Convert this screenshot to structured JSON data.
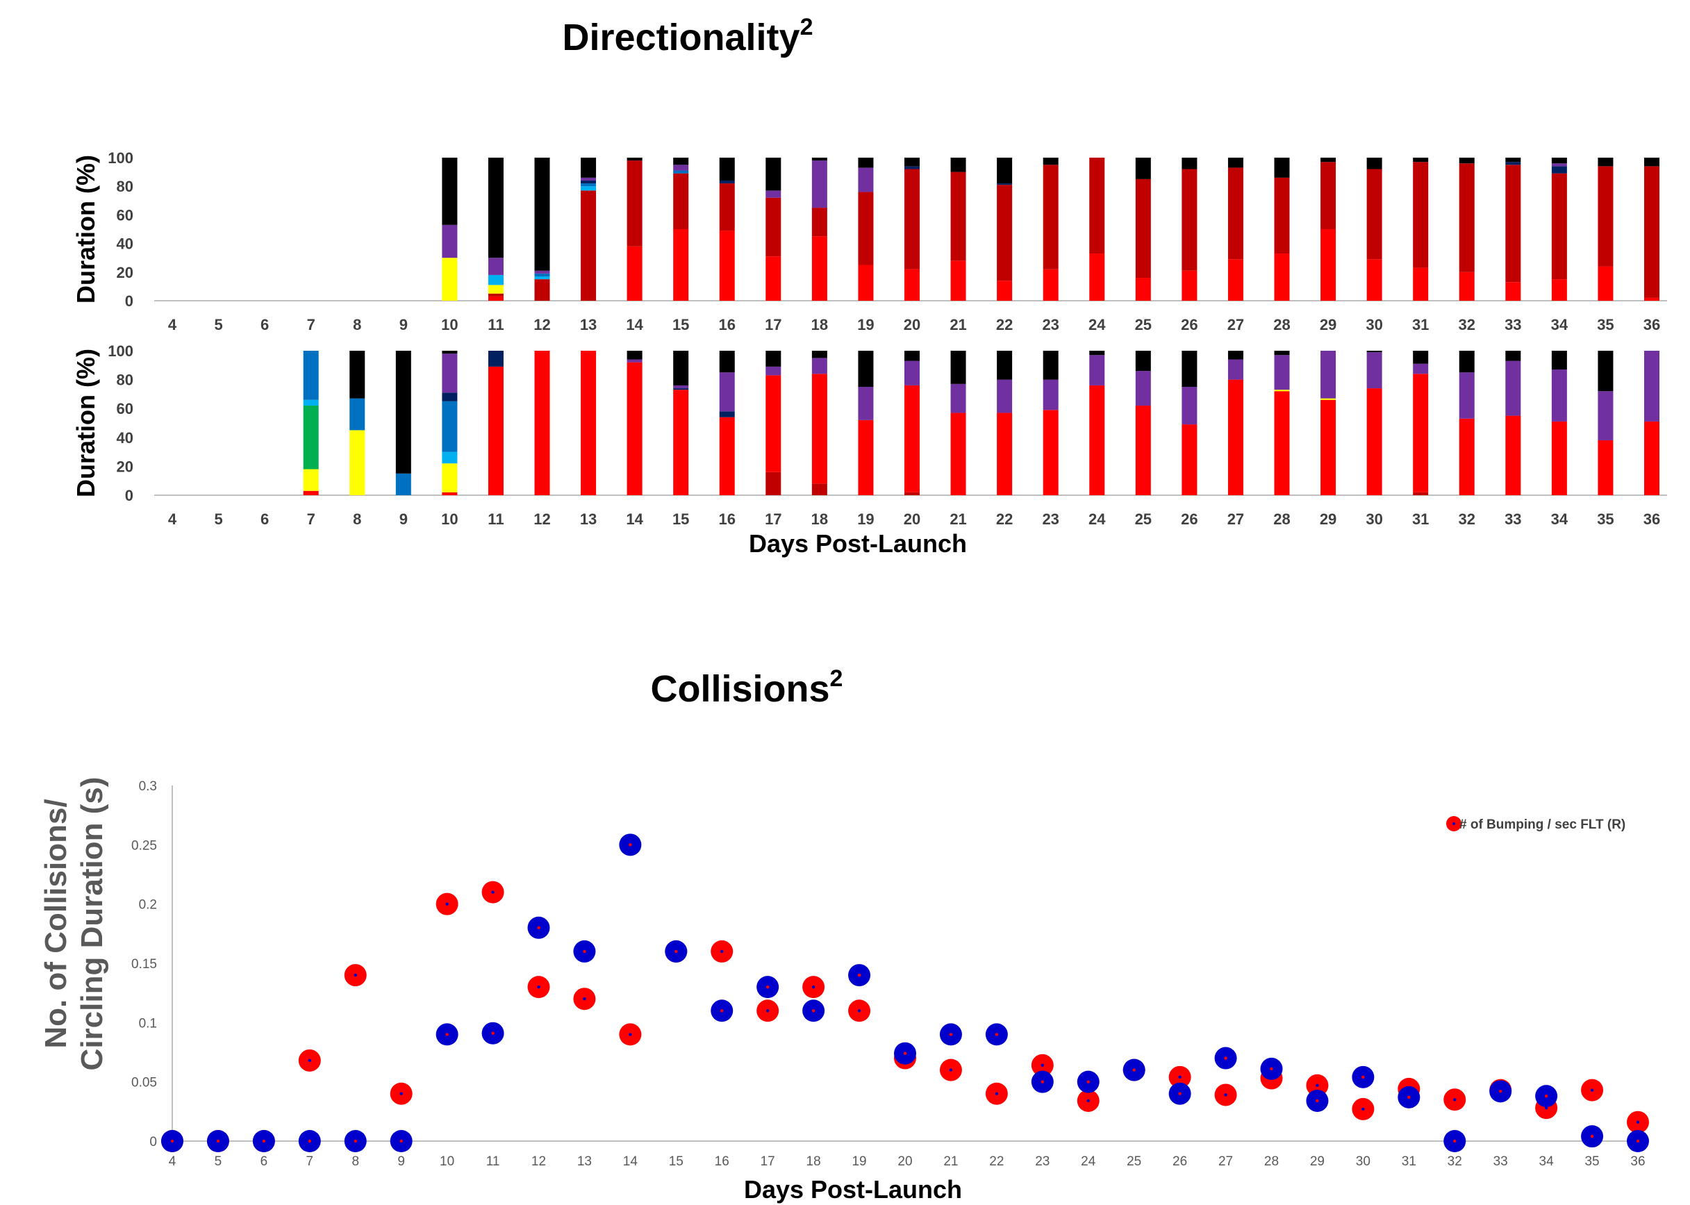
{
  "panel_titles": {
    "directionality": "Directionality",
    "directionality_sup": "2",
    "collisions": "Collisions",
    "collisions_sup": "2"
  },
  "colors": {
    "red": "#ff0000",
    "darkred": "#c00000",
    "purple": "#7030a0",
    "navy": "#002060",
    "blue": "#0070c0",
    "lightblue": "#00b0f0",
    "green": "#00b050",
    "yellow": "#ffff00",
    "black": "#000000",
    "marker_red": "#ff0000",
    "marker_blue": "#0000cc"
  },
  "chart_data": [
    {
      "type": "bar",
      "stacked": true,
      "title": "Directionality",
      "ylabel": "Duration (%)",
      "xlabel": "",
      "ylim": [
        0,
        100
      ],
      "yticks": [
        0,
        20,
        40,
        60,
        80,
        100
      ],
      "categories": [
        "4",
        "5",
        "6",
        "7",
        "8",
        "9",
        "10",
        "11",
        "12",
        "13",
        "14",
        "15",
        "16",
        "17",
        "18",
        "19",
        "20",
        "21",
        "22",
        "23",
        "24",
        "25",
        "26",
        "27",
        "28",
        "29",
        "30",
        "31",
        "32",
        "33",
        "34",
        "35",
        "36"
      ],
      "stack_order": [
        "red",
        "darkred",
        "yellow",
        "green",
        "lightblue",
        "blue",
        "navy",
        "purple",
        "black"
      ],
      "values": [
        {},
        {},
        {},
        {},
        {},
        {},
        {
          "yellow": 30,
          "purple": 23,
          "black": 47
        },
        {
          "red": 3,
          "darkred": 2,
          "yellow": 6,
          "lightblue": 7,
          "purple": 12,
          "black": 70
        },
        {
          "darkred": 15,
          "lightblue": 2,
          "blue": 2,
          "purple": 2,
          "black": 79
        },
        {
          "darkred": 77,
          "lightblue": 3,
          "blue": 2,
          "purple": 2,
          "navy": 2,
          "black": 14
        },
        {
          "red": 38,
          "darkred": 60,
          "black": 2
        },
        {
          "red": 50,
          "darkred": 39,
          "blue": 2,
          "purple": 4,
          "black": 5
        },
        {
          "red": 49,
          "darkred": 33,
          "navy": 2,
          "black": 16
        },
        {
          "red": 31,
          "darkred": 41,
          "purple": 5,
          "black": 23
        },
        {
          "red": 45,
          "darkred": 20,
          "purple": 33,
          "black": 2
        },
        {
          "red": 25,
          "darkred": 51,
          "purple": 17,
          "black": 7
        },
        {
          "red": 22,
          "darkred": 70,
          "navy": 2,
          "black": 6
        },
        {
          "red": 28,
          "darkred": 62,
          "black": 10
        },
        {
          "red": 14,
          "darkred": 67,
          "navy": 1,
          "black": 18
        },
        {
          "red": 22,
          "darkred": 73,
          "black": 5
        },
        {
          "red": 33,
          "darkred": 67
        },
        {
          "red": 16,
          "darkred": 69,
          "black": 15
        },
        {
          "red": 21,
          "darkred": 71,
          "black": 8
        },
        {
          "red": 29,
          "darkred": 64,
          "black": 7
        },
        {
          "red": 33,
          "darkred": 53,
          "black": 14
        },
        {
          "red": 50,
          "darkred": 47,
          "black": 3
        },
        {
          "red": 29,
          "darkred": 63,
          "black": 8
        },
        {
          "red": 23,
          "darkred": 74,
          "black": 3
        },
        {
          "red": 20,
          "darkred": 76,
          "black": 4
        },
        {
          "red": 13,
          "darkred": 82,
          "navy": 2,
          "black": 3
        },
        {
          "red": 15,
          "darkred": 74,
          "purple": 2,
          "navy": 5,
          "black": 4
        },
        {
          "red": 24,
          "darkred": 70,
          "black": 6
        },
        {
          "red": 2,
          "darkred": 92,
          "black": 6
        }
      ]
    },
    {
      "type": "bar",
      "stacked": true,
      "ylabel": "Duration (%)",
      "xlabel": "Days Post-Launch",
      "ylim": [
        0,
        100
      ],
      "yticks": [
        0,
        20,
        40,
        60,
        80,
        100
      ],
      "categories": [
        "4",
        "5",
        "6",
        "7",
        "8",
        "9",
        "10",
        "11",
        "12",
        "13",
        "14",
        "15",
        "16",
        "17",
        "18",
        "19",
        "20",
        "21",
        "22",
        "23",
        "24",
        "25",
        "26",
        "27",
        "28",
        "29",
        "30",
        "31",
        "32",
        "33",
        "34",
        "35",
        "36"
      ],
      "stack_order": [
        "darkred",
        "red",
        "yellow",
        "green",
        "lightblue",
        "blue",
        "navy",
        "purple",
        "black"
      ],
      "values": [
        {},
        {},
        {},
        {
          "red": 3,
          "yellow": 15,
          "green": 44,
          "lightblue": 4,
          "blue": 34
        },
        {
          "yellow": 45,
          "blue": 22,
          "black": 33
        },
        {
          "blue": 15,
          "black": 85
        },
        {
          "red": 2,
          "yellow": 20,
          "lightblue": 8,
          "blue": 35,
          "navy": 6,
          "purple": 27,
          "black": 2
        },
        {
          "red": 89,
          "navy": 11
        },
        {
          "red": 100
        },
        {
          "red": 100
        },
        {
          "red": 92,
          "purple": 2,
          "black": 6
        },
        {
          "red": 73,
          "purple": 2,
          "navy": 1,
          "black": 24
        },
        {
          "red": 54,
          "navy": 4,
          "purple": 27,
          "black": 15
        },
        {
          "darkred": 16,
          "red": 67,
          "purple": 6,
          "black": 11
        },
        {
          "darkred": 8,
          "red": 76,
          "purple": 11,
          "black": 5
        },
        {
          "red": 52,
          "purple": 23,
          "black": 25
        },
        {
          "darkred": 2,
          "red": 74,
          "purple": 17,
          "black": 7
        },
        {
          "red": 57,
          "purple": 20,
          "black": 23
        },
        {
          "red": 57,
          "purple": 23,
          "black": 20
        },
        {
          "red": 59,
          "purple": 21,
          "black": 20
        },
        {
          "red": 76,
          "purple": 21,
          "black": 3
        },
        {
          "red": 62,
          "purple": 24,
          "black": 14
        },
        {
          "red": 49,
          "purple": 26,
          "black": 25
        },
        {
          "red": 80,
          "purple": 14,
          "black": 6
        },
        {
          "red": 72,
          "yellow": 1,
          "purple": 24,
          "black": 3
        },
        {
          "red": 66,
          "yellow": 1,
          "purple": 33
        },
        {
          "red": 74,
          "purple": 25,
          "black": 1
        },
        {
          "darkred": 2,
          "red": 82,
          "purple": 7,
          "black": 9
        },
        {
          "red": 53,
          "purple": 32,
          "black": 15
        },
        {
          "red": 55,
          "purple": 38,
          "black": 7
        },
        {
          "red": 51,
          "purple": 36,
          "black": 13
        },
        {
          "red": 38,
          "purple": 34,
          "black": 28
        },
        {
          "red": 51,
          "purple": 49
        }
      ]
    },
    {
      "type": "scatter",
      "title": "Collisions",
      "ylabel_lines": [
        "No. of Collisions/",
        "Circling Duration (s)"
      ],
      "xlabel": "Days Post-Launch",
      "ylim": [
        0,
        0.3
      ],
      "yticks": [
        {
          "v": 0,
          "label": "0"
        },
        {
          "v": 0.05,
          "label": "0.05"
        },
        {
          "v": 0.1,
          "label": "0.1"
        },
        {
          "v": 0.15,
          "label": "0.15"
        },
        {
          "v": 0.2,
          "label": "0.2"
        },
        {
          "v": 0.25,
          "label": "0.25"
        },
        {
          "v": 0.3,
          "label": "0.3"
        }
      ],
      "x": [
        4,
        5,
        6,
        7,
        8,
        9,
        10,
        11,
        12,
        13,
        14,
        15,
        16,
        17,
        18,
        19,
        20,
        21,
        22,
        23,
        24,
        25,
        26,
        27,
        28,
        29,
        30,
        31,
        32,
        33,
        34,
        35,
        36
      ],
      "legend": {
        "label": "# of Bumping / sec FLT (R)",
        "position": "top-right"
      },
      "series": [
        {
          "name": "# of Bumping / sec FLT (R)",
          "color": "red",
          "values": [
            0,
            0,
            0,
            0.068,
            0.14,
            0.04,
            0.2,
            0.21,
            0.13,
            0.12,
            0.09,
            0.16,
            0.16,
            0.11,
            0.13,
            0.11,
            0.07,
            0.06,
            0.04,
            0.064,
            0.034,
            0.06,
            0.054,
            0.039,
            0.053,
            0.047,
            0.027,
            0.044,
            0.035,
            0.043,
            0.028,
            0.043,
            0.016
          ]
        },
        {
          "color": "blue",
          "values": [
            0,
            0,
            0,
            0,
            0,
            0,
            0.09,
            0.091,
            0.18,
            0.16,
            0.25,
            0.16,
            0.11,
            0.13,
            0.11,
            0.14,
            0.074,
            0.09,
            0.09,
            0.05,
            0.05,
            0.06,
            0.04,
            0.07,
            0.061,
            0.034,
            0.054,
            0.037,
            0,
            0.042,
            0.038,
            0.004,
            0
          ]
        }
      ]
    }
  ]
}
